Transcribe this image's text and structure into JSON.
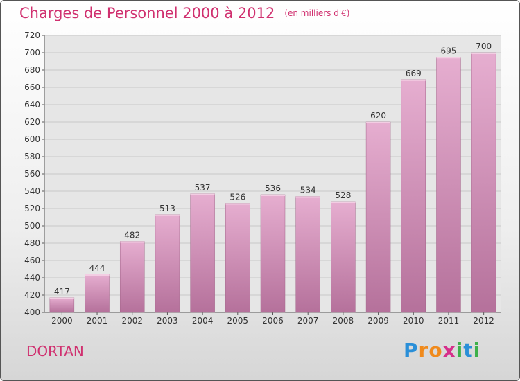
{
  "header": {
    "title": "Charges de Personnel 2000 à 2012",
    "subtitle": "(en milliers d'€)"
  },
  "footer": {
    "commune": "DORTAN",
    "logo_letters": [
      "P",
      "r",
      "o",
      "x",
      "i",
      "t",
      "i"
    ],
    "logo_colors": [
      "#2a8fd8",
      "#f08a1c",
      "#f08a1c",
      "#d62f8b",
      "#3db04a",
      "#2a8fd8",
      "#3db04a"
    ]
  },
  "colors": {
    "bar_top": "#e6aed0",
    "bar_bottom": "#b5719b",
    "title": "#d0306f",
    "grid": "#c8c8c8"
  },
  "chart_data": {
    "type": "bar",
    "title": "Charges de Personnel 2000 à 2012",
    "subtitle": "(en milliers d'€)",
    "categories": [
      "2000",
      "2001",
      "2002",
      "2003",
      "2004",
      "2005",
      "2006",
      "2007",
      "2008",
      "2009",
      "2010",
      "2011",
      "2012"
    ],
    "values": [
      417,
      444,
      482,
      513,
      537,
      526,
      536,
      534,
      528,
      620,
      669,
      695,
      700
    ],
    "ylim": [
      400,
      720
    ],
    "yticks": [
      400,
      420,
      440,
      460,
      480,
      500,
      520,
      540,
      560,
      580,
      600,
      620,
      640,
      660,
      680,
      700,
      720
    ],
    "grid": true,
    "legend": "none"
  }
}
